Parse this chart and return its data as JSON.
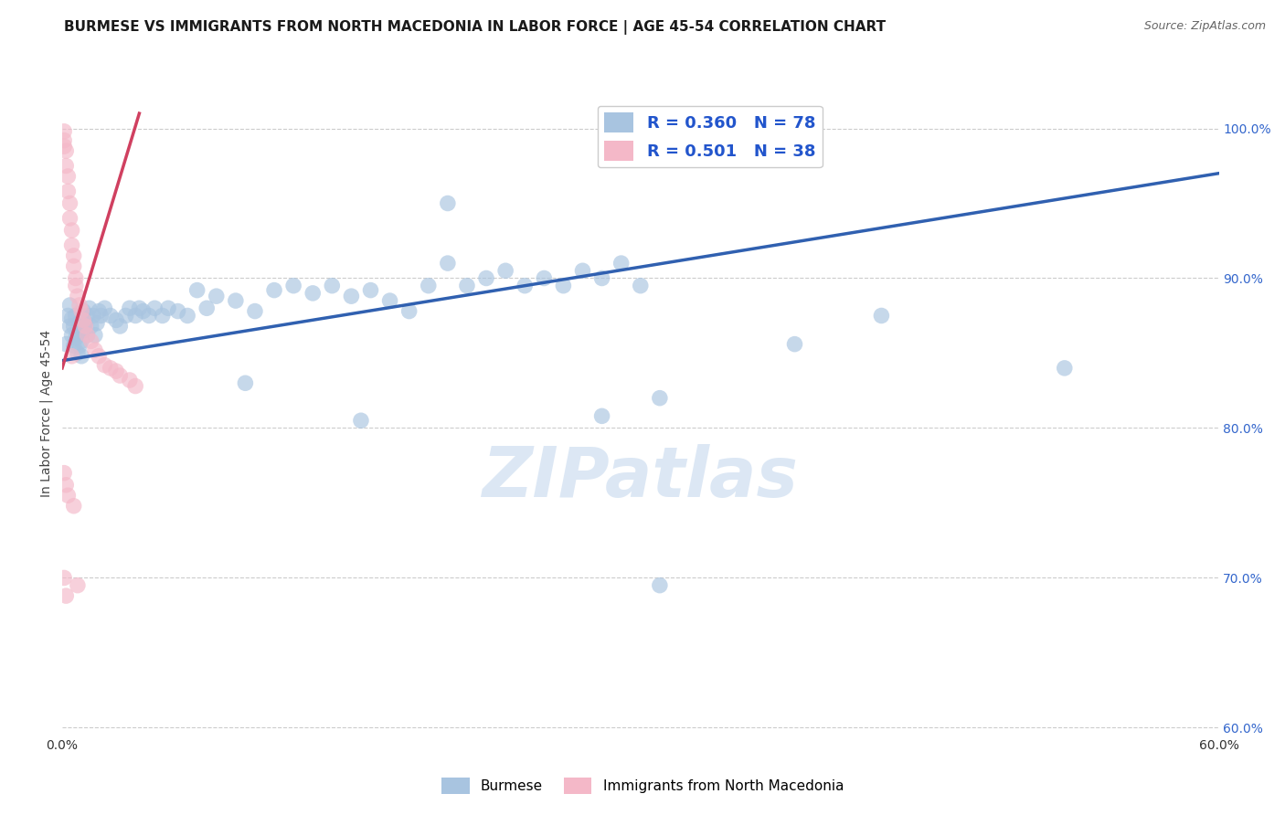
{
  "title": "BURMESE VS IMMIGRANTS FROM NORTH MACEDONIA IN LABOR FORCE | AGE 45-54 CORRELATION CHART",
  "source": "Source: ZipAtlas.com",
  "ylabel": "In Labor Force | Age 45-54",
  "xlim": [
    0.0,
    0.6
  ],
  "ylim": [
    0.595,
    1.025
  ],
  "xticks": [
    0.0,
    0.1,
    0.2,
    0.3,
    0.4,
    0.5,
    0.6
  ],
  "yticks": [
    0.6,
    0.7,
    0.8,
    0.9,
    1.0
  ],
  "ytick_labels": [
    "60.0%",
    "70.0%",
    "80.0%",
    "90.0%",
    "100.0%"
  ],
  "xtick_labels": [
    "0.0%",
    "",
    "",
    "",
    "",
    "",
    "60.0%"
  ],
  "blue_color": "#a8c4e0",
  "pink_color": "#f4b8c8",
  "blue_line_color": "#3060b0",
  "pink_line_color": "#d04060",
  "legend_text_color": "#2255cc",
  "R_blue": 0.36,
  "N_blue": 78,
  "R_pink": 0.501,
  "N_pink": 38,
  "blue_x": [
    0.002,
    0.003,
    0.004,
    0.004,
    0.005,
    0.005,
    0.006,
    0.006,
    0.007,
    0.007,
    0.008,
    0.008,
    0.009,
    0.009,
    0.01,
    0.01,
    0.01,
    0.011,
    0.011,
    0.012,
    0.013,
    0.013,
    0.014,
    0.015,
    0.016,
    0.017,
    0.018,
    0.019,
    0.02,
    0.022,
    0.025,
    0.028,
    0.03,
    0.033,
    0.035,
    0.038,
    0.04,
    0.042,
    0.045,
    0.048,
    0.052,
    0.055,
    0.06,
    0.065,
    0.07,
    0.075,
    0.08,
    0.09,
    0.1,
    0.11,
    0.12,
    0.13,
    0.14,
    0.15,
    0.16,
    0.17,
    0.18,
    0.19,
    0.2,
    0.21,
    0.22,
    0.23,
    0.24,
    0.25,
    0.26,
    0.27,
    0.28,
    0.29,
    0.3,
    0.2,
    0.155,
    0.095,
    0.31,
    0.28,
    0.52,
    0.38,
    0.31,
    0.425
  ],
  "blue_y": [
    0.856,
    0.875,
    0.868,
    0.882,
    0.862,
    0.873,
    0.855,
    0.868,
    0.86,
    0.875,
    0.85,
    0.863,
    0.855,
    0.87,
    0.848,
    0.858,
    0.872,
    0.865,
    0.878,
    0.87,
    0.875,
    0.862,
    0.88,
    0.868,
    0.875,
    0.862,
    0.87,
    0.878,
    0.875,
    0.88,
    0.875,
    0.872,
    0.868,
    0.875,
    0.88,
    0.875,
    0.88,
    0.878,
    0.875,
    0.88,
    0.875,
    0.88,
    0.878,
    0.875,
    0.892,
    0.88,
    0.888,
    0.885,
    0.878,
    0.892,
    0.895,
    0.89,
    0.895,
    0.888,
    0.892,
    0.885,
    0.878,
    0.895,
    0.91,
    0.895,
    0.9,
    0.905,
    0.895,
    0.9,
    0.895,
    0.905,
    0.9,
    0.91,
    0.895,
    0.95,
    0.805,
    0.83,
    0.82,
    0.808,
    0.84,
    0.856,
    0.695,
    0.875
  ],
  "pink_x": [
    0.001,
    0.001,
    0.001,
    0.002,
    0.002,
    0.003,
    0.003,
    0.004,
    0.004,
    0.005,
    0.005,
    0.006,
    0.006,
    0.007,
    0.007,
    0.008,
    0.009,
    0.01,
    0.011,
    0.012,
    0.013,
    0.015,
    0.017,
    0.019,
    0.022,
    0.025,
    0.028,
    0.03,
    0.035,
    0.038,
    0.005,
    0.001,
    0.002,
    0.003,
    0.006,
    0.001,
    0.002,
    0.008
  ],
  "pink_y": [
    0.998,
    0.992,
    0.988,
    0.985,
    0.975,
    0.968,
    0.958,
    0.95,
    0.94,
    0.932,
    0.922,
    0.915,
    0.908,
    0.9,
    0.895,
    0.888,
    0.882,
    0.878,
    0.872,
    0.868,
    0.862,
    0.858,
    0.852,
    0.848,
    0.842,
    0.84,
    0.838,
    0.835,
    0.832,
    0.828,
    0.848,
    0.77,
    0.762,
    0.755,
    0.748,
    0.7,
    0.688,
    0.695
  ],
  "background_color": "#ffffff",
  "grid_color": "#cccccc",
  "title_fontsize": 11,
  "tick_label_color_right": "#3366cc",
  "watermark_text": "ZIPatlas",
  "watermark_color": "#c5d8ee",
  "watermark_alpha": 0.6,
  "watermark_fontsize": 55,
  "blue_trend_x": [
    0.0,
    0.6
  ],
  "blue_trend_y": [
    0.845,
    0.97
  ],
  "pink_trend_x": [
    0.0,
    0.04
  ],
  "pink_trend_y": [
    0.84,
    1.01
  ]
}
